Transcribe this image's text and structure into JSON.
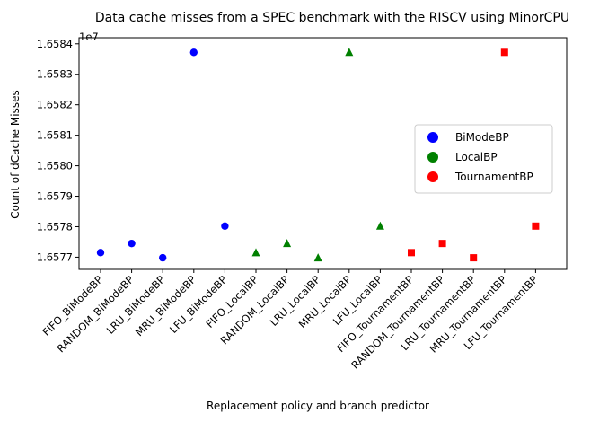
{
  "chart_data": {
    "type": "scatter",
    "title": "Data cache misses from a SPEC benchmark with the RISCV using MinorCPU",
    "xlabel": "Replacement policy and branch predictor",
    "ylabel": "Count of dCache Misses",
    "y_offset_text": "1e7",
    "y_scale_factor": 10000000,
    "ylim": [
      1.65766,
      1.65842
    ],
    "yticks": [
      1.6577,
      1.6578,
      1.6579,
      1.658,
      1.6581,
      1.6582,
      1.6583,
      1.6584
    ],
    "ytick_labels": [
      "1.6577",
      "1.6578",
      "1.6579",
      "1.6580",
      "1.6581",
      "1.6582",
      "1.6583",
      "1.6584"
    ],
    "categories": [
      "FIFO_BiModeBP",
      "RANDOM_BiModeBP",
      "LRU_BiModeBP",
      "MRU_BiModeBP",
      "LFU_BiModeBP",
      "FIFO_LocalBP",
      "RANDOM_LocalBP",
      "LRU_LocalBP",
      "MRU_LocalBP",
      "LFU_LocalBP",
      "FIFO_TournamentBP",
      "RANDOM_TournamentBP",
      "LRU_TournamentBP",
      "MRU_TournamentBP",
      "LFU_TournamentBP"
    ],
    "series": [
      {
        "name": "BiModeBP",
        "color": "#0000ff",
        "marker": "circle",
        "x_index": [
          0,
          1,
          2,
          3,
          4
        ],
        "values": [
          1.657715,
          1.657745,
          1.657698,
          1.658372,
          1.657802
        ]
      },
      {
        "name": "LocalBP",
        "color": "#008000",
        "marker": "triangle",
        "x_index": [
          5,
          6,
          7,
          8,
          9
        ],
        "values": [
          1.657715,
          1.657745,
          1.657698,
          1.658372,
          1.657802
        ]
      },
      {
        "name": "TournamentBP",
        "color": "#ff0000",
        "marker": "square",
        "x_index": [
          10,
          11,
          12,
          13,
          14
        ],
        "values": [
          1.657715,
          1.657745,
          1.657698,
          1.658372,
          1.657802
        ]
      }
    ],
    "legend_position": "center-right",
    "grid": false
  }
}
